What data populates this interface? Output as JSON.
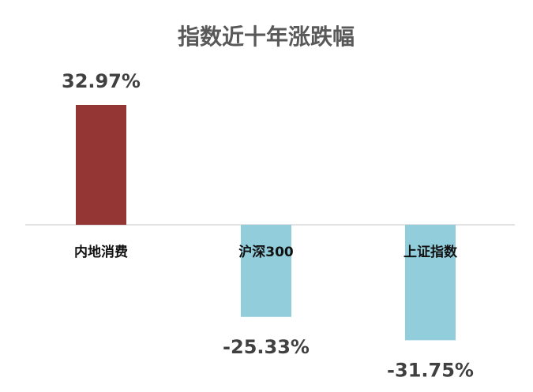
{
  "chart_data": {
    "type": "bar",
    "title": "指数近十年涨跌幅",
    "categories": [
      "内地消费",
      "沪深300",
      "上证指数"
    ],
    "values": [
      32.97,
      -25.33,
      -31.75
    ],
    "value_labels": [
      "32.97%",
      "-25.33%",
      "-31.75%"
    ],
    "colors": [
      "#943634",
      "#92cddc",
      "#92cddc"
    ],
    "positive_color": "#943634",
    "negative_color": "#92cddc",
    "axis_color": "#d9d9d9",
    "ylim": [
      -40,
      40
    ],
    "grid": false,
    "legend": "none"
  }
}
